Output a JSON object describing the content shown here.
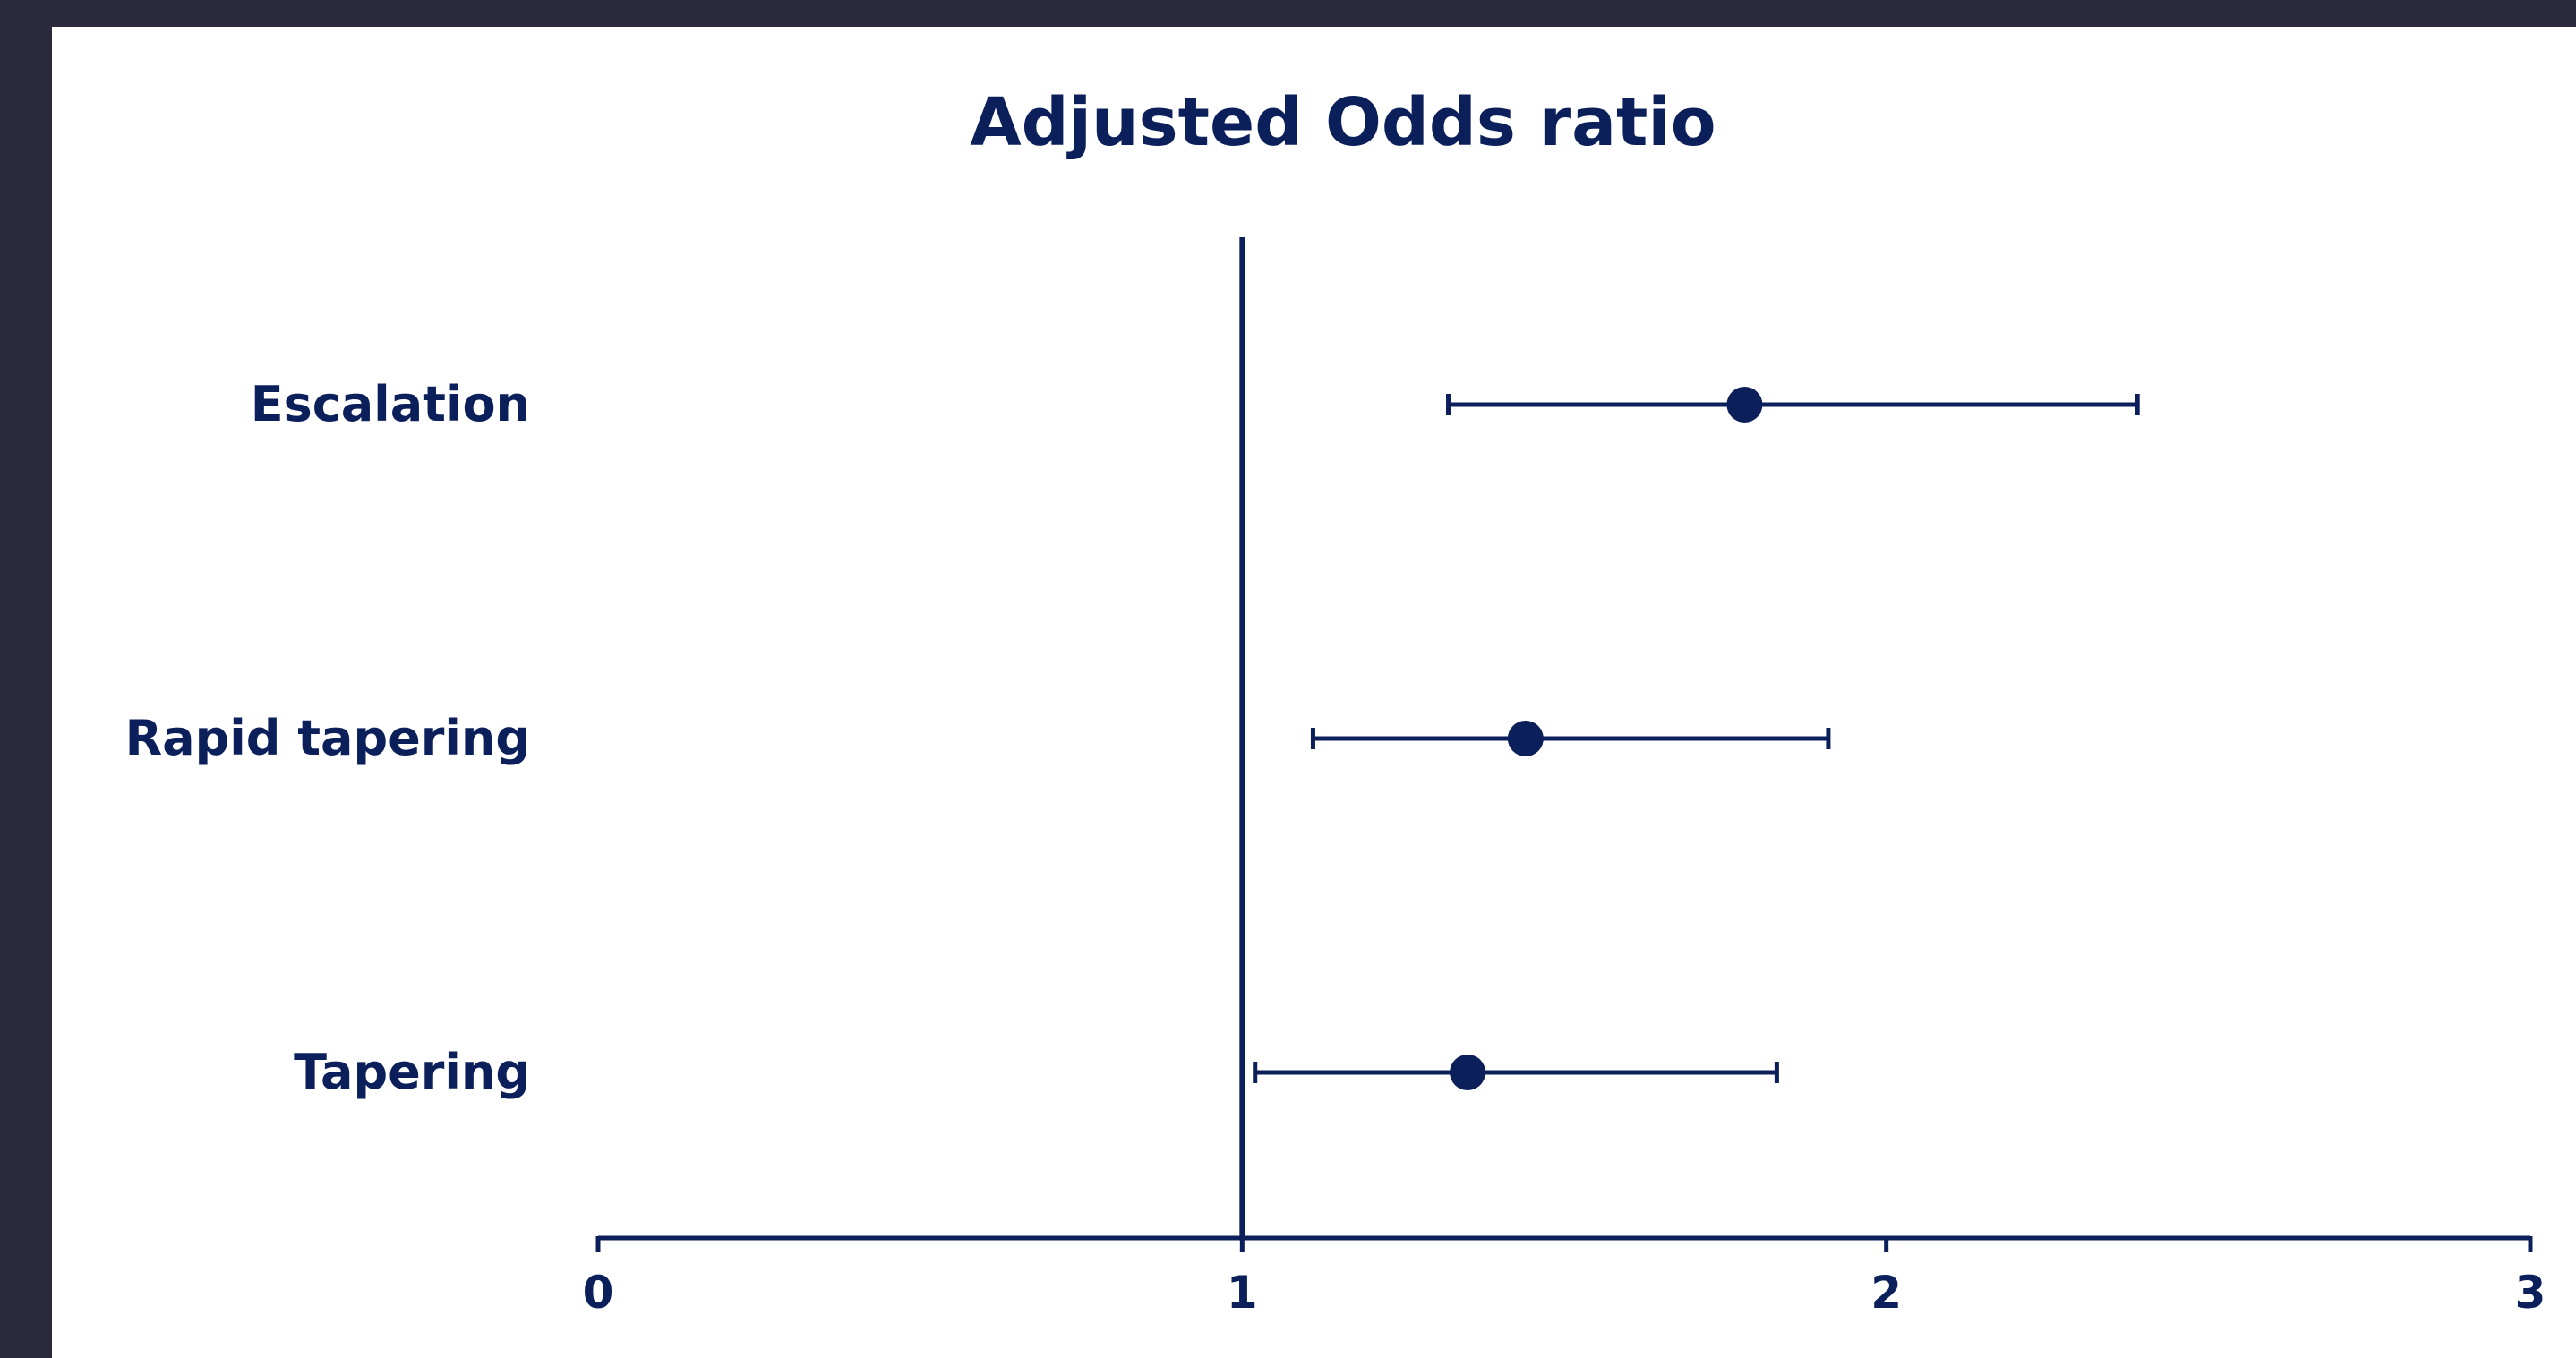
{
  "chart_data": {
    "type": "scatter",
    "subtype": "forest-plot",
    "title": "Adjusted Odds ratio",
    "xlabel": "",
    "ylabel": "",
    "xlim": [
      0,
      3
    ],
    "xticks": [
      0,
      1,
      2,
      3
    ],
    "tick_labels": [
      "0",
      "1",
      "2",
      "3"
    ],
    "reference_line": 1,
    "grid": false,
    "categories": [
      "Escalation",
      "Rapid tapering",
      "Tapering"
    ],
    "estimates": [
      1.78,
      1.44,
      1.35
    ],
    "ci_lower": [
      1.32,
      1.11,
      1.02
    ],
    "ci_upper": [
      2.39,
      1.91,
      1.83
    ]
  },
  "colors": {
    "ink": "#0b1f5a",
    "panel": "#ffffff",
    "frame": "#2a2a3c"
  }
}
